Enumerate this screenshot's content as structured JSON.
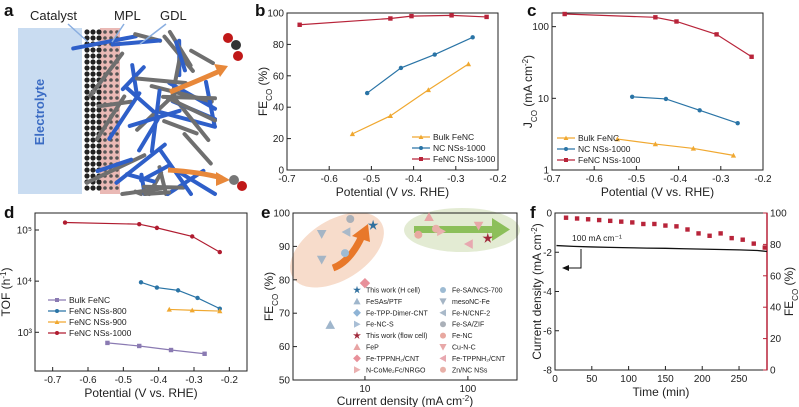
{
  "panel_labels": [
    "a",
    "b",
    "c",
    "d",
    "e",
    "f"
  ],
  "panel_a": {
    "labels": {
      "catalyst": "Catalyst",
      "mpl": "MPL",
      "gdl": "GDL",
      "electrolyte": "Electrolyte"
    },
    "colors": {
      "electrolyte": "#c9dcf1",
      "mpl": "#eab9b5",
      "fiber_blue": "#2e5fc9",
      "fiber_gray": "#6f6f6f",
      "arrow": "#e8883a"
    }
  },
  "chart_data": [
    {
      "panel": "b",
      "type": "line",
      "xlabel": [
        {
          "t": "Potential (V "
        },
        {
          "t": "vs.",
          "i": true
        },
        {
          "t": " RHE)"
        }
      ],
      "ylabel": [
        {
          "t": "FE"
        },
        {
          "t": "CO",
          "sub": true
        },
        {
          "t": " (%)"
        }
      ],
      "xlim": [
        -0.7,
        -0.2
      ],
      "ylim": [
        0,
        100
      ],
      "xscale": "linear",
      "yscale": "linear",
      "xticks": [
        {
          "v": -0.7,
          "l": "-0.7"
        },
        {
          "v": -0.6,
          "l": "-0.6"
        },
        {
          "v": -0.5,
          "l": "-0.5"
        },
        {
          "v": -0.4,
          "l": "-0.4"
        },
        {
          "v": -0.3,
          "l": "-0.3"
        },
        {
          "v": -0.2,
          "l": "-0.2"
        }
      ],
      "yticks": [
        {
          "v": 0,
          "l": "0"
        },
        {
          "v": 20,
          "l": "20"
        },
        {
          "v": 40,
          "l": "40"
        },
        {
          "v": 60,
          "l": "60"
        },
        {
          "v": 80,
          "l": "80"
        },
        {
          "v": 100,
          "l": "100"
        }
      ],
      "legend": "bottom-right",
      "series": [
        {
          "name": "Bulk FeNC",
          "color": "#f0a830",
          "marker": "triangle",
          "x": [
            -0.545,
            -0.455,
            -0.365,
            -0.27
          ],
          "y": [
            23,
            34.5,
            51,
            67.5
          ]
        },
        {
          "name": "NC NSs-1000",
          "color": "#2a74a6",
          "marker": "circle",
          "x": [
            -0.51,
            -0.43,
            -0.35,
            -0.26
          ],
          "y": [
            49,
            65,
            73.5,
            84.5
          ]
        },
        {
          "name": "FeNC NSs-1000",
          "color": "#b8243a",
          "marker": "square",
          "x": [
            -0.67,
            -0.455,
            -0.405,
            -0.31,
            -0.227
          ],
          "y": [
            92.5,
            96.5,
            98,
            98.5,
            97.5
          ]
        }
      ]
    },
    {
      "panel": "c",
      "type": "line",
      "xlabel": [
        {
          "t": "Potential (V vs. RHE)"
        }
      ],
      "ylabel": [
        {
          "t": "J"
        },
        {
          "t": "CO",
          "sub": true
        },
        {
          "t": " (mA cm"
        },
        {
          "t": "-2",
          "sup": true
        },
        {
          "t": ")"
        }
      ],
      "xlim": [
        -0.7,
        -0.2
      ],
      "ylim": [
        1,
        155
      ],
      "xscale": "linear",
      "yscale": "log",
      "xticks": [
        {
          "v": -0.7,
          "l": "-0.7"
        },
        {
          "v": -0.6,
          "l": "-0.6"
        },
        {
          "v": -0.5,
          "l": "-0.5"
        },
        {
          "v": -0.4,
          "l": "-0.4"
        },
        {
          "v": -0.3,
          "l": "-0.3"
        },
        {
          "v": -0.2,
          "l": "-0.2"
        }
      ],
      "yticks": [
        {
          "v": 1,
          "l": "1"
        },
        {
          "v": 10,
          "l": "10"
        },
        {
          "v": 100,
          "l": "100"
        }
      ],
      "legend": "bottom-left",
      "series": [
        {
          "name": "Bulk FeNC",
          "color": "#f0a830",
          "marker": "triangle",
          "x": [
            -0.545,
            -0.455,
            -0.365,
            -0.27
          ],
          "y": [
            2.7,
            2.3,
            2.0,
            1.6
          ]
        },
        {
          "name": "NC NSs-1000",
          "color": "#2a74a6",
          "marker": "circle",
          "x": [
            -0.51,
            -0.43,
            -0.35,
            -0.26
          ],
          "y": [
            10.5,
            9.8,
            6.8,
            4.5
          ]
        },
        {
          "name": "FeNC NSs-1000",
          "color": "#b8243a",
          "marker": "square",
          "x": [
            -0.67,
            -0.455,
            -0.405,
            -0.31,
            -0.227
          ],
          "y": [
            150,
            135,
            118,
            78,
            38
          ]
        }
      ]
    },
    {
      "panel": "d",
      "type": "line",
      "xlabel": [
        {
          "t": "Potential (V vs. RHE)"
        }
      ],
      "ylabel": [
        {
          "t": "TOF (h"
        },
        {
          "t": "-1",
          "sup": true
        },
        {
          "t": ")"
        }
      ],
      "xlim": [
        -0.75,
        -0.15
      ],
      "ylim": [
        175,
        215000
      ],
      "xscale": "linear",
      "yscale": "log",
      "xticks": [
        {
          "v": -0.7,
          "l": "-0.7"
        },
        {
          "v": -0.6,
          "l": "-0.6"
        },
        {
          "v": -0.5,
          "l": "-0.5"
        },
        {
          "v": -0.4,
          "l": "-0.4"
        },
        {
          "v": -0.3,
          "l": "-0.3"
        },
        {
          "v": -0.2,
          "l": "-0.2"
        }
      ],
      "yticks": [
        {
          "v": 1000,
          "l": "10³"
        },
        {
          "v": 10000,
          "l": "10⁴"
        },
        {
          "v": 100000,
          "l": "10⁵"
        }
      ],
      "legend": "left",
      "series": [
        {
          "name": "Bulk FeNC",
          "color": "#8a7ab2",
          "marker": "square",
          "x": [
            -0.545,
            -0.455,
            -0.365,
            -0.27
          ],
          "y": [
            620,
            540,
            450,
            380
          ]
        },
        {
          "name": "FeNC NSs-800",
          "color": "#2a74a6",
          "marker": "circle",
          "x": [
            -0.45,
            -0.405,
            -0.345,
            -0.29,
            -0.227
          ],
          "y": [
            9500,
            7500,
            6600,
            4700,
            2900
          ]
        },
        {
          "name": "FeNC NSs-900",
          "color": "#f0a830",
          "marker": "triangle",
          "x": [
            -0.37,
            -0.305,
            -0.227
          ],
          "y": [
            2800,
            2700,
            2600
          ]
        },
        {
          "name": "FeNC NSs-1000",
          "color": "#b01c30",
          "marker": "circle",
          "x": [
            -0.665,
            -0.455,
            -0.405,
            -0.305,
            -0.227
          ],
          "y": [
            140000,
            130000,
            110000,
            75000,
            37000
          ]
        }
      ]
    },
    {
      "panel": "e",
      "type": "scatter",
      "xlabel": [
        {
          "t": "Current density (mA cm"
        },
        {
          "t": "-2",
          "sup": true
        },
        {
          "t": ")"
        }
      ],
      "ylabel": [
        {
          "t": "FE"
        },
        {
          "t": "CO",
          "sub": true
        },
        {
          "t": " (%)"
        }
      ],
      "xlim": [
        2,
        300
      ],
      "ylim": [
        50,
        100
      ],
      "xscale": "log",
      "yscale": "linear",
      "xticks": [
        {
          "v": 10,
          "l": "10"
        },
        {
          "v": 100,
          "l": "100"
        }
      ],
      "yticks": [
        {
          "v": 50,
          "l": "50"
        },
        {
          "v": 60,
          "l": "60"
        },
        {
          "v": 70,
          "l": "70"
        },
        {
          "v": 80,
          "l": "80"
        },
        {
          "v": 90,
          "l": "90"
        },
        {
          "v": 100,
          "l": "100"
        }
      ],
      "legend": "bottom-right",
      "series": [
        {
          "name": "This work (H cell)",
          "color": "#2f6f9e",
          "marker": "star",
          "x": [
            12.0
          ],
          "y": [
            96.3
          ]
        },
        {
          "name": "FeSAs/PTF",
          "color": "#9fb6cc",
          "marker": "triangle",
          "x": [
            4.6
          ],
          "y": [
            66.5
          ]
        },
        {
          "name": "Fe-TPP-Dimer-CNT",
          "color": "#8fb4d6",
          "marker": "diamond",
          "x": [
            16
          ]
        },
        {
          "name": "Fe-NC-S",
          "color": "#a9bfd6",
          "marker": "tri-right",
          "x": [],
          "y": []
        },
        {
          "name": "This work (flow cell)",
          "color": "#a0283a",
          "marker": "star",
          "x": [
            156
          ],
          "y": [
            92.4
          ]
        },
        {
          "name": "FeP",
          "color": "#e8a4a4",
          "marker": "triangle",
          "x": [
            41.9
          ],
          "y": [
            98.8
          ]
        },
        {
          "name": "Fe-TPPNH₂/CNT",
          "color": "#e8909a",
          "marker": "diamond",
          "x": [
            10
          ],
          "y": [
            79
          ]
        },
        {
          "name": "N-CoMe₂Fc/NRGO",
          "color": "#eab0b0",
          "marker": "tri-right",
          "x": [
            55
          ],
          "y": [
            94.5
          ]
        },
        {
          "name": "Fe-SA/NCS-700",
          "color": "#9dbbd3",
          "marker": "circle",
          "x": [
            6.4
          ],
          "y": [
            88
          ]
        },
        {
          "name": "mesoNC-Fe",
          "color": "#a5b5c5",
          "marker": "tri-down",
          "x": [
            3.8,
            3.8
          ],
          "y": [
            93.7,
            86
          ]
        },
        {
          "name": "Fe-N/CNF-2",
          "color": "#a9b9c9",
          "marker": "tri-left",
          "x": [
            6.6
          ],
          "y": [
            94.3
          ]
        },
        {
          "name": "Fe-SA/ZIF",
          "color": "#aab0b8",
          "marker": "circle",
          "x": [
            7.2
          ],
          "y": [
            98.2
          ]
        },
        {
          "name": "Fe-NC",
          "color": "#e8a8a0",
          "marker": "circle",
          "x": [
            33
          ],
          "y": [
            93.5
          ]
        },
        {
          "name": "Cu-N-C",
          "color": "#e8a8a8",
          "marker": "tri-down",
          "x": [
            127
          ],
          "y": [
            96.2
          ]
        },
        {
          "name": "Fe-TPPNH₂/CNT",
          "color": "#e8a8b0",
          "marker": "tri-left",
          "x": [
            102
          ],
          "y": [
            90.7
          ]
        },
        {
          "name": "Zn/NC NSs",
          "color": "#e8b0a8",
          "marker": "circle",
          "x": [
            49
          ],
          "y": [
            95.3
          ]
        }
      ],
      "regions": {
        "orange_zone": "#f7dccb",
        "green_zone": "#e3ebd3",
        "orange_arrow": "#e8782a",
        "green_arrow": "#8cbf5a"
      }
    },
    {
      "panel": "f",
      "type": "line",
      "xlabel": [
        {
          "t": "Time (min)"
        }
      ],
      "ylabel": [
        {
          "t": "Current density (mA cm"
        },
        {
          "t": "-2",
          "sup": true
        },
        {
          "t": ")"
        }
      ],
      "y2label": [
        {
          "t": "FE"
        },
        {
          "t": "CO",
          "sub": true
        },
        {
          "t": " (%)"
        }
      ],
      "xlim": [
        0,
        288
      ],
      "ylim": [
        -8,
        0
      ],
      "y2lim": [
        0,
        100
      ],
      "xscale": "linear",
      "yscale": "linear",
      "xticks": [
        {
          "v": 0,
          "l": "0"
        },
        {
          "v": 50,
          "l": "50"
        },
        {
          "v": 100,
          "l": "100"
        },
        {
          "v": 150,
          "l": "150"
        },
        {
          "v": 200,
          "l": "200"
        },
        {
          "v": 250,
          "l": "250"
        }
      ],
      "yticks": [
        {
          "v": 0,
          "l": "0"
        },
        {
          "v": -2,
          "l": "-2"
        },
        {
          "v": -4,
          "l": "-4"
        },
        {
          "v": -6,
          "l": "-6"
        },
        {
          "v": -8,
          "l": "-8"
        }
      ],
      "y2ticks": [
        {
          "v": 0,
          "l": "0"
        },
        {
          "v": 20,
          "l": "20"
        },
        {
          "v": 40,
          "l": "40"
        },
        {
          "v": 60,
          "l": "60"
        },
        {
          "v": 80,
          "l": "80"
        },
        {
          "v": 100,
          "l": "100"
        }
      ],
      "annotation": "100 mA cm⁻¹",
      "y2color": "#b8243a",
      "series": [
        {
          "color": "#111111",
          "marker": "none",
          "axis": "left",
          "x": [
            2,
            25,
            50,
            75,
            100,
            125,
            150,
            175,
            200,
            225,
            250,
            275,
            288
          ],
          "y": [
            -1.66,
            -1.7,
            -1.73,
            -1.75,
            -1.77,
            -1.79,
            -1.8,
            -1.82,
            -1.84,
            -1.86,
            -1.88,
            -1.91,
            -1.96
          ]
        },
        {
          "color": "#b8243a",
          "marker": "square",
          "axis": "right",
          "line": false,
          "x": [
            15,
            30,
            45,
            60,
            75,
            90,
            105,
            120,
            135,
            150,
            165,
            180,
            195,
            210,
            225,
            240,
            255,
            270,
            285
          ],
          "y": [
            97,
            96.5,
            96,
            95.5,
            95,
            94.5,
            94,
            93,
            93,
            92,
            91.5,
            89.5,
            87,
            85.5,
            87,
            84,
            83,
            80.5,
            78
          ]
        }
      ]
    }
  ]
}
